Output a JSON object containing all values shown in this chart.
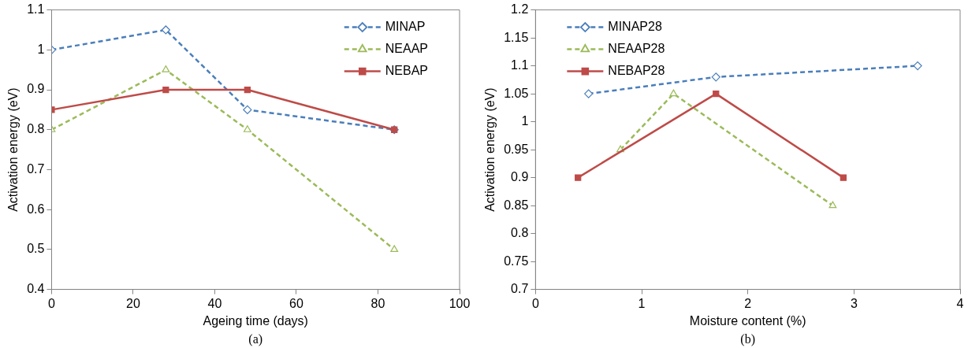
{
  "chart_data": [
    {
      "type": "line",
      "xlabel": "Ageing time (days)",
      "ylabel": "Activation energy (eV)",
      "annotations": [
        "(a)"
      ],
      "xlim": [
        0,
        100
      ],
      "xticks": [
        0,
        20,
        40,
        60,
        80,
        100
      ],
      "ylim": [
        0.4,
        1.1
      ],
      "yticks": [
        0.4,
        0.5,
        0.6,
        0.7,
        0.8,
        0.9,
        1,
        1.1
      ],
      "grid": false,
      "legend": "top right",
      "series": [
        {
          "name": "MINAP",
          "color": "#4a7ebb",
          "x": [
            0,
            28,
            48,
            84
          ],
          "values": [
            1,
            1.05,
            0.85,
            0.8
          ],
          "line_style": "dashed",
          "marker": "diamond"
        },
        {
          "name": "NEAAP",
          "color": "#9bbb59",
          "x": [
            0,
            28,
            48,
            84
          ],
          "values": [
            0.8,
            0.95,
            0.8,
            0.5
          ],
          "line_style": "dashed",
          "marker": "triangle"
        },
        {
          "name": "NEBAP",
          "color": "#be4b48",
          "x": [
            0,
            28,
            48,
            84
          ],
          "values": [
            0.85,
            0.9,
            0.9,
            0.8
          ],
          "line_style": "solid",
          "marker": "square"
        }
      ]
    },
    {
      "type": "line",
      "xlabel": "Moisture content (%)",
      "ylabel": "Activation energy (eV)",
      "annotations": [
        "(b)"
      ],
      "xlim": [
        0,
        4
      ],
      "xticks": [
        0,
        1,
        2,
        3,
        4
      ],
      "ylim": [
        0.7,
        1.2
      ],
      "yticks": [
        0.7,
        0.75,
        0.8,
        0.85,
        0.9,
        0.95,
        1,
        1.05,
        1.1,
        1.15,
        1.2
      ],
      "grid": false,
      "legend": "top left",
      "series": [
        {
          "name": "MINAP28",
          "color": "#4a7ebb",
          "x": [
            0.5,
            1.7,
            3.6
          ],
          "values": [
            1.05,
            1.08,
            1.1
          ],
          "line_style": "dashed",
          "marker": "diamond"
        },
        {
          "name": "NEAAP28",
          "color": "#9bbb59",
          "x": [
            0.8,
            1.3,
            2.8
          ],
          "values": [
            0.95,
            1.05,
            0.85
          ],
          "line_style": "dashed",
          "marker": "triangle"
        },
        {
          "name": "NEBAP28",
          "color": "#be4b48",
          "x": [
            0.4,
            1.7,
            2.9
          ],
          "values": [
            0.9,
            1.05,
            0.9
          ],
          "line_style": "solid",
          "marker": "square"
        }
      ]
    }
  ]
}
